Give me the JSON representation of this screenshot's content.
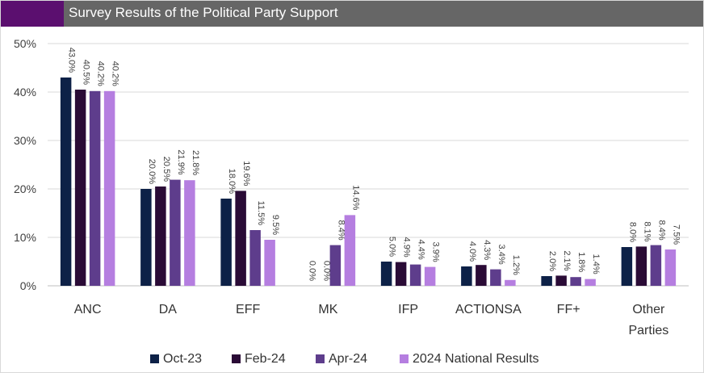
{
  "chart_data": {
    "type": "bar",
    "title": "Survey Results of the Political Party Support",
    "categories": [
      "ANC",
      "DA",
      "EFF",
      "MK",
      "IFP",
      "ACTIONSA",
      "FF+",
      "Other Parties"
    ],
    "series": [
      {
        "name": "Oct-23",
        "color": "#0d2147",
        "values": [
          43.0,
          20.0,
          18.0,
          0.0,
          5.0,
          4.0,
          2.0,
          8.0
        ],
        "labels": [
          "43.0%",
          "20.0%",
          "18.0%",
          "0.0%",
          "5.0%",
          "4.0%",
          "2.0%",
          "8.0%"
        ]
      },
      {
        "name": "Feb-24",
        "color": "#2a0b36",
        "values": [
          40.5,
          20.5,
          19.6,
          0.0,
          4.9,
          4.3,
          2.1,
          8.1
        ],
        "labels": [
          "40.5%",
          "20.5%",
          "19.6%",
          "0.0%",
          "4.9%",
          "4.3%",
          "2.1%",
          "8.1%"
        ]
      },
      {
        "name": "Apr-24",
        "color": "#5e3d8c",
        "values": [
          40.2,
          21.9,
          11.5,
          8.4,
          4.4,
          3.4,
          1.8,
          8.4
        ],
        "labels": [
          "40.2%",
          "21.9%",
          "11.5%",
          "8.4%",
          "4.4%",
          "3.4%",
          "1.8%",
          "8.4%"
        ]
      },
      {
        "name": "2024 National Results",
        "color": "#b57ee0",
        "values": [
          40.2,
          21.8,
          9.5,
          14.6,
          3.9,
          1.2,
          1.4,
          7.5
        ],
        "labels": [
          "40.2%",
          "21.8%",
          "9.5%",
          "14.6%",
          "3.9%",
          "1.2%",
          "1.4%",
          "7.5%"
        ]
      }
    ],
    "ylim": [
      0,
      50
    ],
    "yticks": [
      "0%",
      "10%",
      "20%",
      "30%",
      "40%",
      "50%"
    ],
    "grid": true,
    "legend_position": "bottom",
    "colors": {
      "title_bar": "#666666",
      "title_accent": "#5b0f6f",
      "grid": "#d9d9d9"
    }
  }
}
